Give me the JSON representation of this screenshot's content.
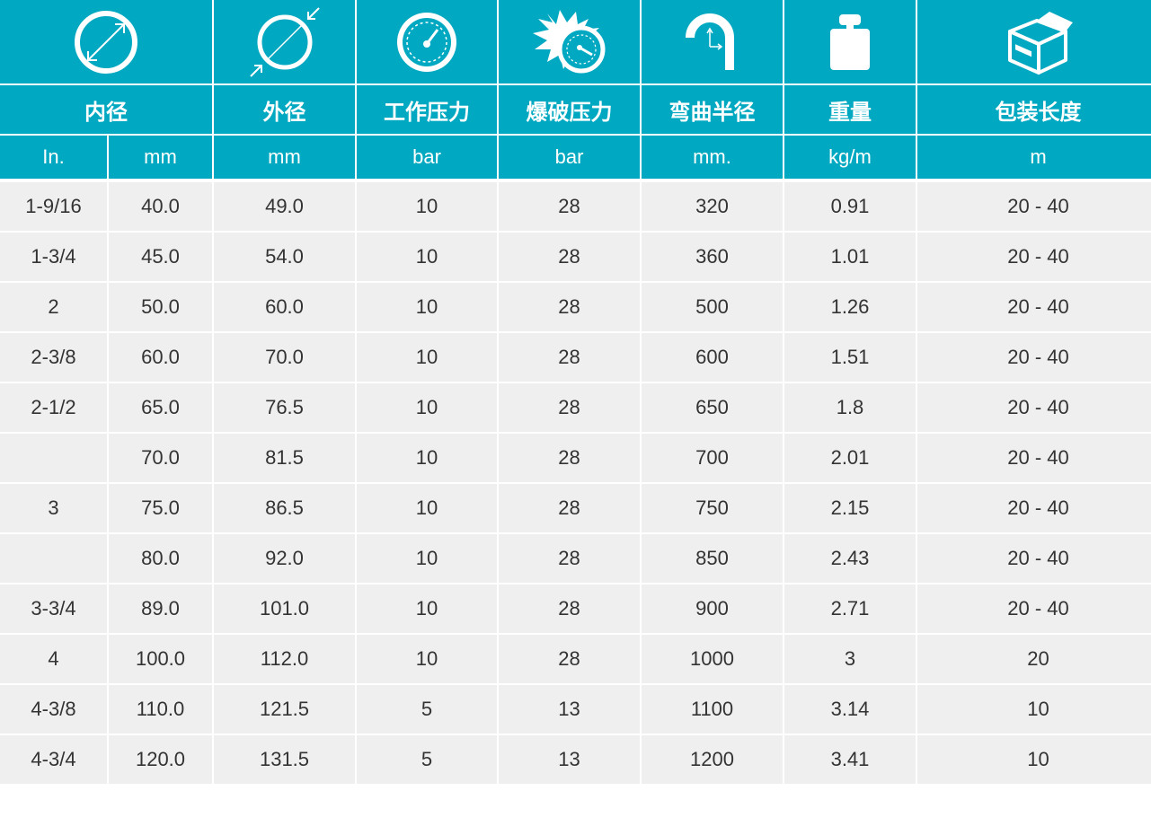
{
  "header": {
    "icons": [
      "inner-diameter-icon",
      "outer-diameter-icon",
      "pressure-gauge-icon",
      "burst-gauge-icon",
      "bend-radius-icon",
      "weight-icon",
      "package-box-icon"
    ],
    "titles": [
      "内径",
      "外径",
      "工作压力",
      "爆破压力",
      "弯曲半径",
      "重量",
      "包装长度"
    ],
    "units": [
      "In.",
      "mm",
      "mm",
      "bar",
      "bar",
      "mm.",
      "kg/m",
      "m"
    ]
  },
  "rows": [
    [
      "1-9/16",
      "40.0",
      "49.0",
      "10",
      "28",
      "320",
      "0.91",
      "20 - 40"
    ],
    [
      "1-3/4",
      "45.0",
      "54.0",
      "10",
      "28",
      "360",
      "1.01",
      "20 - 40"
    ],
    [
      "2",
      "50.0",
      "60.0",
      "10",
      "28",
      "500",
      "1.26",
      "20 - 40"
    ],
    [
      "2-3/8",
      "60.0",
      "70.0",
      "10",
      "28",
      "600",
      "1.51",
      "20 - 40"
    ],
    [
      "2-1/2",
      "65.0",
      "76.5",
      "10",
      "28",
      "650",
      "1.8",
      "20 - 40"
    ],
    [
      "",
      "70.0",
      "81.5",
      "10",
      "28",
      "700",
      "2.01",
      "20 - 40"
    ],
    [
      "3",
      "75.0",
      "86.5",
      "10",
      "28",
      "750",
      "2.15",
      "20 - 40"
    ],
    [
      "",
      "80.0",
      "92.0",
      "10",
      "28",
      "850",
      "2.43",
      "20 - 40"
    ],
    [
      "3-3/4",
      "89.0",
      "101.0",
      "10",
      "28",
      "900",
      "2.71",
      "20 - 40"
    ],
    [
      "4",
      "100.0",
      "112.0",
      "10",
      "28",
      "1000",
      "3",
      "20"
    ],
    [
      "4-3/8",
      "110.0",
      "121.5",
      "5",
      "13",
      "1100",
      "3.14",
      "10"
    ],
    [
      "4-3/4",
      "120.0",
      "131.5",
      "5",
      "13",
      "1200",
      "3.41",
      "10"
    ]
  ],
  "colors": {
    "accent": "#00a9c1",
    "row_bg": "#efefef",
    "text": "#333333"
  }
}
